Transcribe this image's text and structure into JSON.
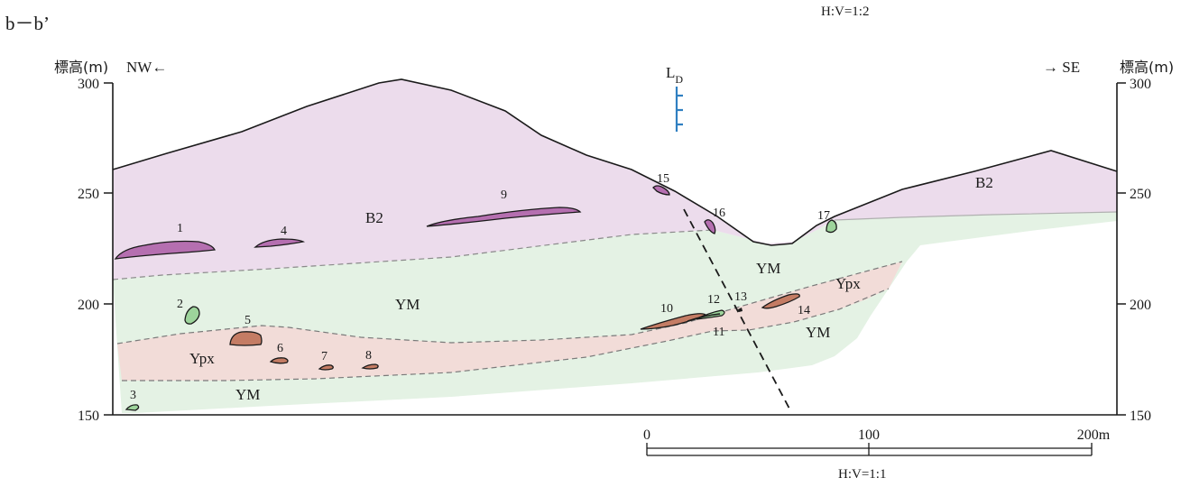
{
  "section_label": "b－b’",
  "scale_top": "H:V=1:2",
  "scale_bottom": "H:V=1:1",
  "left_axis": {
    "title": "標高(m)",
    "direction": "NW←",
    "ticks": [
      "300",
      "250",
      "200",
      "150"
    ]
  },
  "right_axis": {
    "title": "標高(m)",
    "direction": "→ SE",
    "ticks": [
      "300",
      "250",
      "200",
      "150"
    ]
  },
  "fault": {
    "label": "L",
    "subscript": "D"
  },
  "units": {
    "b2_left": "B2",
    "b2_right": "B2",
    "ym_upper": "YM",
    "ym_center": "YM",
    "ym_lower": "YM",
    "ym_right": "YM",
    "ypx_left": "Ypx",
    "ypx_right": "Ypx"
  },
  "bodies": [
    "1",
    "2",
    "3",
    "4",
    "5",
    "6",
    "7",
    "8",
    "9",
    "10",
    "11",
    "12",
    "13",
    "14",
    "15",
    "16",
    "17"
  ],
  "scale_bar": {
    "ticks": [
      "0",
      "100",
      "200m"
    ]
  },
  "colors": {
    "b2_fill": "#ecdcec",
    "ym_fill": "#e4f2e4",
    "ypx_fill": "#f2dcd8",
    "purple_body": "#b56fb0",
    "green_body": "#9dd49b",
    "brown_body": "#c47c64",
    "fault_marker": "#2f7fc1",
    "line": "#1a1a1a"
  }
}
